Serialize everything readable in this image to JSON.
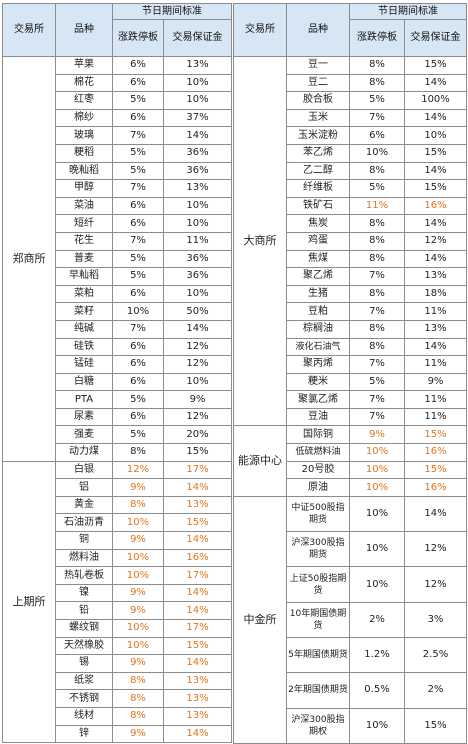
{
  "header": {
    "exchange": "交易所",
    "product": "品种",
    "holiday": "节日期间标准",
    "limit": "涨跌停板",
    "margin": "交易保证金"
  },
  "colors": {
    "header_bg": "#d7e6f5",
    "highlight": "#e0751c",
    "text": "#222222",
    "border": "#8c8c8c"
  },
  "left": [
    {
      "exchange": "郑商所",
      "rows": [
        {
          "name": "苹果",
          "limit": "6%",
          "margin": "13%",
          "hl": false
        },
        {
          "name": "棉花",
          "limit": "6%",
          "margin": "10%",
          "hl": false
        },
        {
          "name": "红枣",
          "limit": "5%",
          "margin": "10%",
          "hl": false
        },
        {
          "name": "棉纱",
          "limit": "6%",
          "margin": "37%",
          "hl": false
        },
        {
          "name": "玻璃",
          "limit": "7%",
          "margin": "14%",
          "hl": false
        },
        {
          "name": "粳稻",
          "limit": "5%",
          "margin": "36%",
          "hl": false
        },
        {
          "name": "晚籼稻",
          "limit": "5%",
          "margin": "36%",
          "hl": false
        },
        {
          "name": "甲醇",
          "limit": "7%",
          "margin": "13%",
          "hl": false
        },
        {
          "name": "菜油",
          "limit": "6%",
          "margin": "10%",
          "hl": false
        },
        {
          "name": "短纤",
          "limit": "6%",
          "margin": "10%",
          "hl": false
        },
        {
          "name": "花生",
          "limit": "7%",
          "margin": "11%",
          "hl": false
        },
        {
          "name": "普麦",
          "limit": "5%",
          "margin": "36%",
          "hl": false
        },
        {
          "name": "早籼稻",
          "limit": "5%",
          "margin": "36%",
          "hl": false
        },
        {
          "name": "菜粕",
          "limit": "6%",
          "margin": "10%",
          "hl": false
        },
        {
          "name": "菜籽",
          "limit": "10%",
          "margin": "50%",
          "hl": false
        },
        {
          "name": "纯碱",
          "limit": "7%",
          "margin": "14%",
          "hl": false
        },
        {
          "name": "硅铁",
          "limit": "6%",
          "margin": "12%",
          "hl": false
        },
        {
          "name": "锰硅",
          "limit": "6%",
          "margin": "12%",
          "hl": false
        },
        {
          "name": "白糖",
          "limit": "6%",
          "margin": "10%",
          "hl": false
        },
        {
          "name": "PTA",
          "limit": "5%",
          "margin": "9%",
          "hl": false
        },
        {
          "name": "尿素",
          "limit": "6%",
          "margin": "12%",
          "hl": false
        },
        {
          "name": "强麦",
          "limit": "5%",
          "margin": "20%",
          "hl": false
        },
        {
          "name": "动力煤",
          "limit": "8%",
          "margin": "15%",
          "hl": false
        }
      ]
    },
    {
      "exchange": "上期所",
      "rows": [
        {
          "name": "白银",
          "limit": "12%",
          "margin": "17%",
          "hl": true
        },
        {
          "name": "铝",
          "limit": "9%",
          "margin": "14%",
          "hl": true
        },
        {
          "name": "黄金",
          "limit": "8%",
          "margin": "13%",
          "hl": true
        },
        {
          "name": "石油沥青",
          "limit": "10%",
          "margin": "15%",
          "hl": true
        },
        {
          "name": "铜",
          "limit": "9%",
          "margin": "14%",
          "hl": true
        },
        {
          "name": "燃料油",
          "limit": "10%",
          "margin": "16%",
          "hl": true
        },
        {
          "name": "热轧卷板",
          "limit": "10%",
          "margin": "17%",
          "hl": true
        },
        {
          "name": "镍",
          "limit": "9%",
          "margin": "14%",
          "hl": true
        },
        {
          "name": "铅",
          "limit": "9%",
          "margin": "14%",
          "hl": true
        },
        {
          "name": "螺纹钢",
          "limit": "10%",
          "margin": "17%",
          "hl": true
        },
        {
          "name": "天然橡胶",
          "limit": "10%",
          "margin": "15%",
          "hl": true
        },
        {
          "name": "锡",
          "limit": "9%",
          "margin": "14%",
          "hl": true
        },
        {
          "name": "纸浆",
          "limit": "8%",
          "margin": "13%",
          "hl": true
        },
        {
          "name": "不锈钢",
          "limit": "8%",
          "margin": "13%",
          "hl": true
        },
        {
          "name": "线材",
          "limit": "8%",
          "margin": "13%",
          "hl": true
        },
        {
          "name": "锌",
          "limit": "9%",
          "margin": "14%",
          "hl": true
        }
      ]
    }
  ],
  "right": [
    {
      "exchange": "大商所",
      "rows": [
        {
          "name": "豆一",
          "limit": "8%",
          "margin": "15%",
          "hl": false
        },
        {
          "name": "豆二",
          "limit": "8%",
          "margin": "14%",
          "hl": false
        },
        {
          "name": "胶合板",
          "limit": "5%",
          "margin": "100%",
          "hl": false
        },
        {
          "name": "玉米",
          "limit": "7%",
          "margin": "14%",
          "hl": false
        },
        {
          "name": "玉米淀粉",
          "limit": "6%",
          "margin": "10%",
          "hl": false
        },
        {
          "name": "苯乙烯",
          "limit": "10%",
          "margin": "15%",
          "hl": false
        },
        {
          "name": "乙二醇",
          "limit": "8%",
          "margin": "14%",
          "hl": false
        },
        {
          "name": "纤维板",
          "limit": "5%",
          "margin": "15%",
          "hl": false
        },
        {
          "name": "铁矿石",
          "limit": "11%",
          "margin": "16%",
          "hl": true
        },
        {
          "name": "焦炭",
          "limit": "8%",
          "margin": "14%",
          "hl": false
        },
        {
          "name": "鸡蛋",
          "limit": "8%",
          "margin": "12%",
          "hl": false
        },
        {
          "name": "焦煤",
          "limit": "8%",
          "margin": "14%",
          "hl": false
        },
        {
          "name": "聚乙烯",
          "limit": "7%",
          "margin": "13%",
          "hl": false
        },
        {
          "name": "生猪",
          "limit": "8%",
          "margin": "18%",
          "hl": false
        },
        {
          "name": "豆粕",
          "limit": "7%",
          "margin": "11%",
          "hl": false
        },
        {
          "name": "棕榈油",
          "limit": "8%",
          "margin": "13%",
          "hl": false
        },
        {
          "name": "液化石油气",
          "limit": "8%",
          "margin": "14%",
          "hl": false
        },
        {
          "name": "聚丙烯",
          "limit": "7%",
          "margin": "11%",
          "hl": false
        },
        {
          "name": "粳米",
          "limit": "5%",
          "margin": "9%",
          "hl": false
        },
        {
          "name": "聚氯乙烯",
          "limit": "7%",
          "margin": "11%",
          "hl": false
        },
        {
          "name": "豆油",
          "limit": "7%",
          "margin": "11%",
          "hl": false
        }
      ]
    },
    {
      "exchange": "能源中心",
      "rows": [
        {
          "name": "国际铜",
          "limit": "9%",
          "margin": "15%",
          "hl": true
        },
        {
          "name": "低硫燃料油",
          "limit": "10%",
          "margin": "16%",
          "hl": true
        },
        {
          "name": "20号胶",
          "limit": "10%",
          "margin": "15%",
          "hl": true
        },
        {
          "name": "原油",
          "limit": "10%",
          "margin": "16%",
          "hl": true
        }
      ]
    },
    {
      "exchange": "中金所",
      "rows": [
        {
          "name": "中证500股指期货",
          "limit": "10%",
          "margin": "14%",
          "hl": false
        },
        {
          "name": "沪深300股指期货",
          "limit": "10%",
          "margin": "12%",
          "hl": false
        },
        {
          "name": "上证50股指期货",
          "limit": "10%",
          "margin": "12%",
          "hl": false
        },
        {
          "name": "10年期国债期货",
          "limit": "2%",
          "margin": "3%",
          "hl": false
        },
        {
          "name": "5年期国债期货",
          "limit": "1.2%",
          "margin": "2.5%",
          "hl": false
        },
        {
          "name": "2年期国债期货",
          "limit": "0.5%",
          "margin": "2%",
          "hl": false
        },
        {
          "name": "沪深300股指期权",
          "limit": "10%",
          "margin": "15%",
          "hl": false
        }
      ]
    }
  ]
}
